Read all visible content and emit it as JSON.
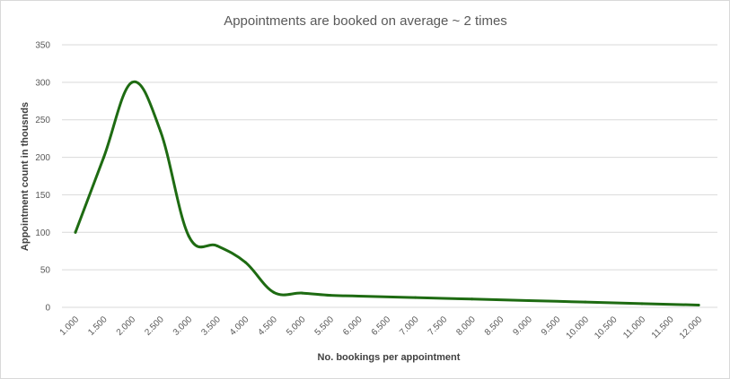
{
  "chart_data": {
    "type": "line",
    "title": "Appointments are booked on average ~ 2 times",
    "xlabel": "No. bookings per appointment",
    "ylabel": "Appointment count in thousnds",
    "ylim": [
      0,
      350
    ],
    "y_ticks": [
      "0",
      "50",
      "100",
      "150",
      "200",
      "250",
      "300",
      "350"
    ],
    "x_tick_labels": [
      "1.000",
      "1.500",
      "2.000",
      "2.500",
      "3.000",
      "3.500",
      "4.000",
      "4.500",
      "5.000",
      "5.500",
      "6.000",
      "6.500",
      "7.000",
      "7.500",
      "8.000",
      "8.500",
      "9.000",
      "9.500",
      "10.000",
      "10.500",
      "11.000",
      "11.500",
      "12.000"
    ],
    "grid": true,
    "series": [
      {
        "color": "#1e6b12",
        "points": [
          {
            "x": 1.0,
            "y": 100
          },
          {
            "x": 1.5,
            "y": 200
          },
          {
            "x": 2.0,
            "y": 300
          },
          {
            "x": 2.5,
            "y": 235
          },
          {
            "x": 3.0,
            "y": 95
          },
          {
            "x": 3.5,
            "y": 82
          },
          {
            "x": 4.0,
            "y": 60
          },
          {
            "x": 4.5,
            "y": 20
          },
          {
            "x": 5.0,
            "y": 19
          },
          {
            "x": 5.5,
            "y": 16
          },
          {
            "x": 6.0,
            "y": 15
          },
          {
            "x": 7.0,
            "y": 13
          },
          {
            "x": 8.0,
            "y": 11
          },
          {
            "x": 9.0,
            "y": 9
          },
          {
            "x": 10.0,
            "y": 7
          },
          {
            "x": 11.0,
            "y": 5
          },
          {
            "x": 12.0,
            "y": 3
          }
        ]
      }
    ]
  }
}
